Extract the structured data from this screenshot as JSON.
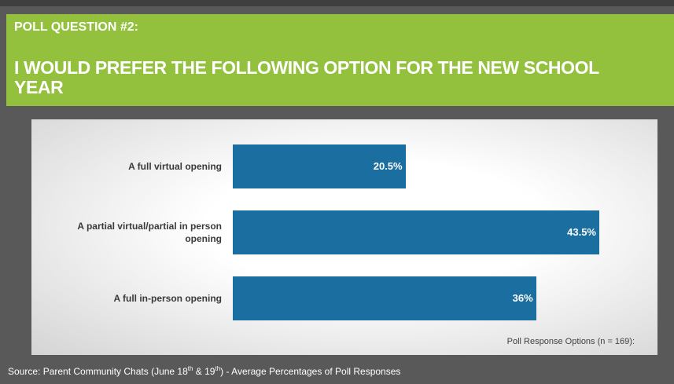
{
  "slide": {
    "label": "POLL QUESTION #2:",
    "title": "I WOULD PREFER THE FOLLOWING OPTION FOR THE NEW SCHOOL YEAR"
  },
  "chart_data": {
    "type": "bar",
    "orientation": "horizontal",
    "categories": [
      "A full virtual opening",
      "A partial virtual/partial in person opening",
      "A full in-person opening"
    ],
    "values": [
      20.5,
      43.5,
      36
    ],
    "value_labels": [
      "20.5%",
      "43.5%",
      "36%"
    ],
    "color": "#1b6fa0",
    "note": "Poll Response Options (n = 169):"
  },
  "source": [
    "Source: Parent Community Chats (June 18",
    "th",
    " & 19",
    "th",
    ") - Average Percentages of Poll Responses"
  ]
}
